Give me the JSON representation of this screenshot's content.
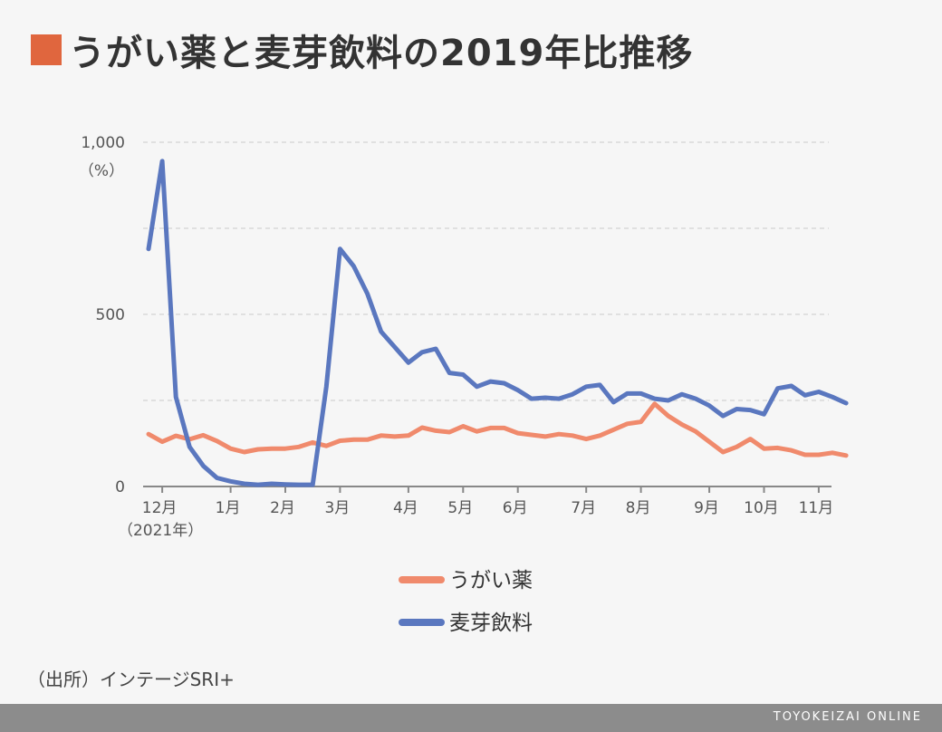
{
  "header": {
    "title": "うがい薬と麦芽飲料の2019年比推移",
    "accent": "#e0663e"
  },
  "source": "（出所）インテージSRI+",
  "footer": {
    "brand": "TOYOKEIZAI ONLINE"
  },
  "chart_data": {
    "type": "line",
    "title": "うがい薬と麦芽飲料の2019年比推移",
    "unit": "（%）",
    "ylim": [
      0,
      1000
    ],
    "y_ticks": [
      0,
      500,
      1000
    ],
    "y_tick_labels": [
      "0",
      "500",
      "1,000"
    ],
    "grid": true,
    "legend": "bottom",
    "x_ticks": [
      {
        "x": 1,
        "label": "12月",
        "sub": "（2021年）"
      },
      {
        "x": 6,
        "label": "1月"
      },
      {
        "x": 10,
        "label": "2月"
      },
      {
        "x": 14,
        "label": "3月"
      },
      {
        "x": 19,
        "label": "4月"
      },
      {
        "x": 23,
        "label": "5月"
      },
      {
        "x": 27,
        "label": "6月"
      },
      {
        "x": 32,
        "label": "7月"
      },
      {
        "x": 36,
        "label": "8月"
      },
      {
        "x": 41,
        "label": "9月"
      },
      {
        "x": 45,
        "label": "10月"
      },
      {
        "x": 49,
        "label": "11月"
      }
    ],
    "series": [
      {
        "name": "うがい薬",
        "color": "#f08a6c",
        "values": [
          152,
          130,
          147,
          137,
          149,
          132,
          110,
          100,
          108,
          110,
          110,
          115,
          128,
          118,
          133,
          136,
          136,
          148,
          145,
          148,
          171,
          162,
          158,
          175,
          160,
          170,
          170,
          155,
          150,
          145,
          152,
          148,
          138,
          148,
          165,
          182,
          188,
          240,
          205,
          180,
          160,
          130,
          100,
          115,
          138,
          110,
          112,
          105,
          92,
          92,
          98,
          90
        ]
      },
      {
        "name": "麦芽飲料",
        "color": "#5a77bf",
        "values": [
          690,
          945,
          260,
          115,
          60,
          25,
          15,
          8,
          5,
          8,
          6,
          5,
          5,
          290,
          690,
          640,
          560,
          450,
          405,
          360,
          390,
          400,
          330,
          325,
          290,
          305,
          300,
          280,
          255,
          258,
          255,
          268,
          290,
          295,
          245,
          270,
          270,
          255,
          250,
          268,
          255,
          235,
          205,
          225,
          222,
          210,
          285,
          292,
          265,
          275,
          260,
          242
        ]
      }
    ]
  }
}
